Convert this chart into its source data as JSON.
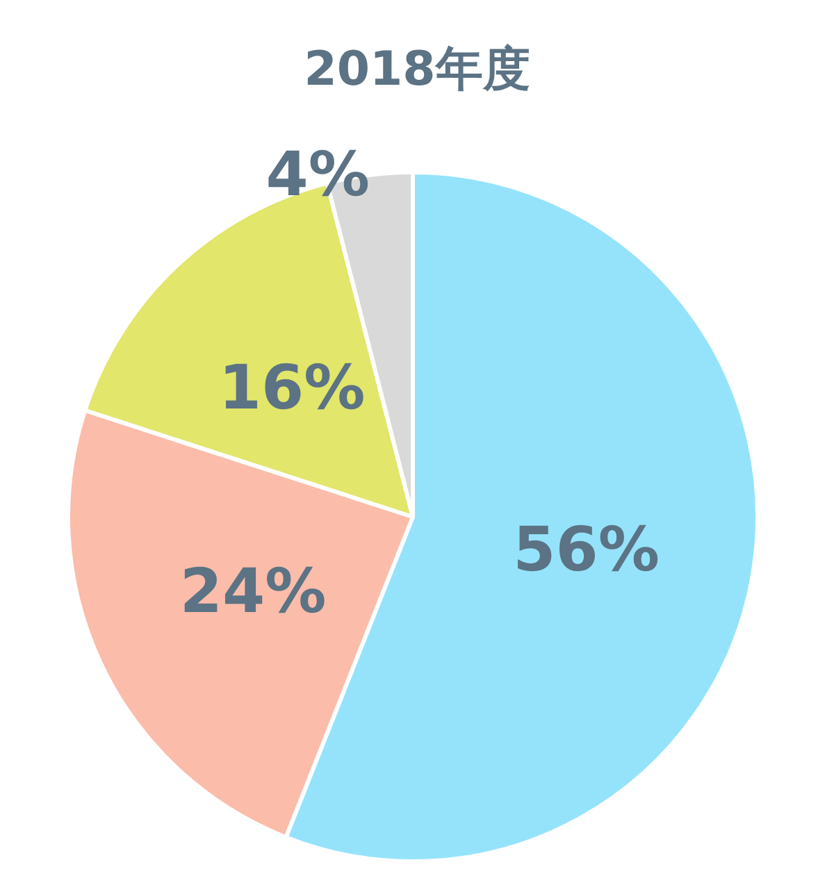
{
  "chart_data": {
    "type": "pie",
    "title": "2018年度",
    "categories": [
      null,
      null,
      null,
      null
    ],
    "values": [
      56,
      24,
      16,
      4
    ],
    "colors": [
      "#95e3fb",
      "#fbbcaa",
      "#e2e66a",
      "#d9d9d9"
    ],
    "value_labels": [
      "56%",
      "24%",
      "16%",
      "4%"
    ]
  }
}
